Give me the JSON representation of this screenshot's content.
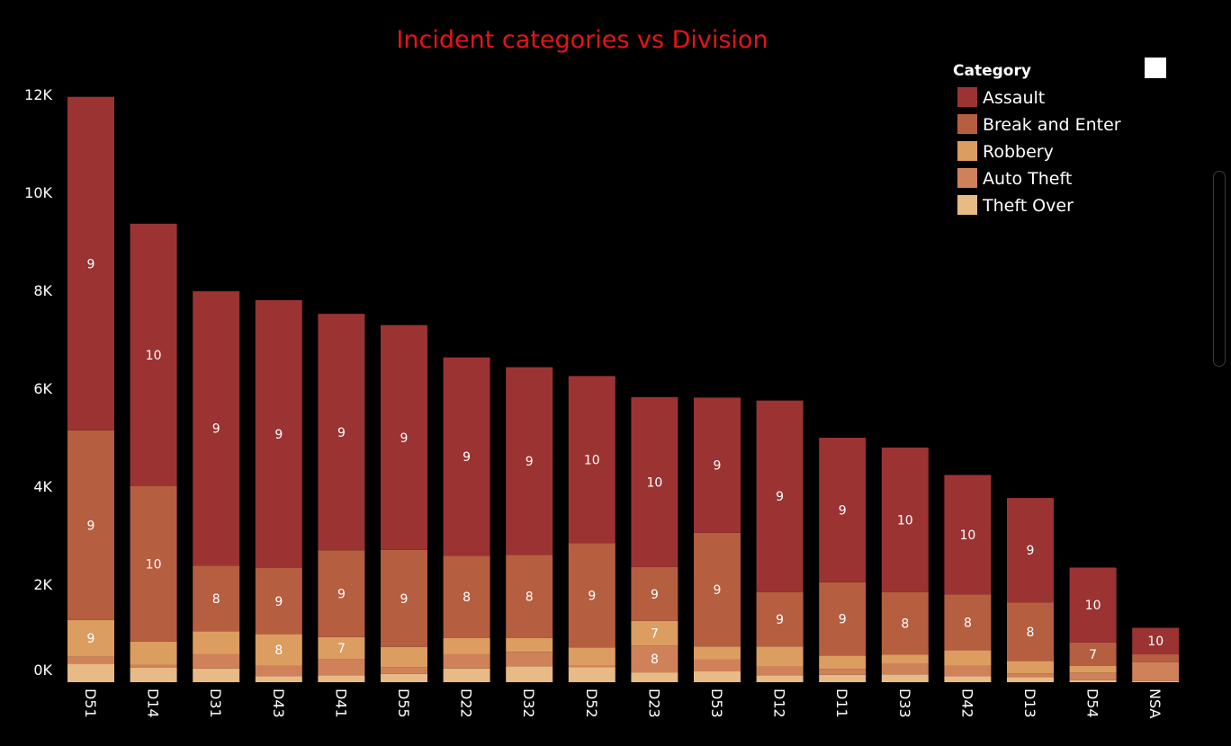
{
  "chart_data": {
    "type": "bar",
    "stacked": true,
    "title": "Incident categories vs Division",
    "xlabel": "",
    "ylabel": "",
    "ylim": [
      0,
      12000
    ],
    "y_ticks": [
      0,
      2000,
      4000,
      6000,
      8000,
      10000,
      12000
    ],
    "y_tick_labels": [
      "0K",
      "2K",
      "4K",
      "6K",
      "8K",
      "10K",
      "12K"
    ],
    "grid": false,
    "legend_position": "top-right",
    "legend_title": "Category",
    "categories": [
      "D51",
      "D14",
      "D31",
      "D43",
      "D41",
      "D55",
      "D22",
      "D32",
      "D52",
      "D23",
      "D53",
      "D12",
      "D11",
      "D33",
      "D42",
      "D13",
      "D54",
      "NSA"
    ],
    "series": [
      {
        "name": "Theft Over",
        "color": "#e8ba86",
        "values": [
          380,
          300,
          280,
          120,
          140,
          170,
          280,
          320,
          310,
          200,
          220,
          140,
          150,
          160,
          120,
          100,
          40,
          20
        ],
        "labels": [
          "",
          "",
          "",
          "",
          "",
          "",
          "",
          "",
          "",
          "",
          "",
          "",
          "",
          "",
          "",
          "",
          "",
          ""
        ]
      },
      {
        "name": "Auto Theft",
        "color": "#cf8259",
        "values": [
          140,
          50,
          290,
          220,
          330,
          140,
          290,
          300,
          30,
          550,
          240,
          180,
          120,
          210,
          220,
          80,
          160,
          390
        ],
        "labels": [
          "",
          "",
          "",
          "",
          "",
          "",
          "",
          "",
          "",
          "8",
          "",
          "",
          "",
          "",
          "",
          "",
          "",
          ""
        ]
      },
      {
        "name": "Robbery",
        "color": "#dc9d60",
        "values": [
          750,
          480,
          470,
          640,
          450,
          410,
          330,
          280,
          370,
          500,
          270,
          410,
          270,
          190,
          310,
          250,
          130,
          0
        ],
        "labels": [
          "9",
          "",
          "",
          "8",
          "7",
          "",
          "",
          "",
          "",
          "7",
          "",
          "",
          "",
          "",
          "",
          "",
          "",
          ""
        ]
      },
      {
        "name": "Break and Enter",
        "color": "#b65e40",
        "values": [
          3870,
          3170,
          1340,
          1350,
          1770,
          1980,
          1680,
          1700,
          2130,
          1100,
          2320,
          1110,
          1500,
          1280,
          1140,
          1200,
          480,
          160
        ],
        "labels": [
          "9",
          "10",
          "8",
          "9",
          "9",
          "9",
          "8",
          "8",
          "9",
          "9",
          "9",
          "9",
          "9",
          "8",
          "8",
          "8",
          "7",
          ""
        ]
      },
      {
        "name": "Assault",
        "color": "#9b3333",
        "values": [
          6810,
          5360,
          5600,
          5470,
          4830,
          4590,
          4050,
          3830,
          3410,
          3470,
          2760,
          3910,
          2950,
          2950,
          2440,
          2130,
          1530,
          540
        ],
        "labels": [
          "9",
          "10",
          "9",
          "9",
          "9",
          "9",
          "9",
          "9",
          "10",
          "10",
          "9",
          "9",
          "9",
          "10",
          "10",
          "9",
          "10",
          "10"
        ]
      }
    ],
    "legend_order": [
      "Assault",
      "Break and Enter",
      "Robbery",
      "Auto Theft",
      "Theft Over"
    ]
  }
}
